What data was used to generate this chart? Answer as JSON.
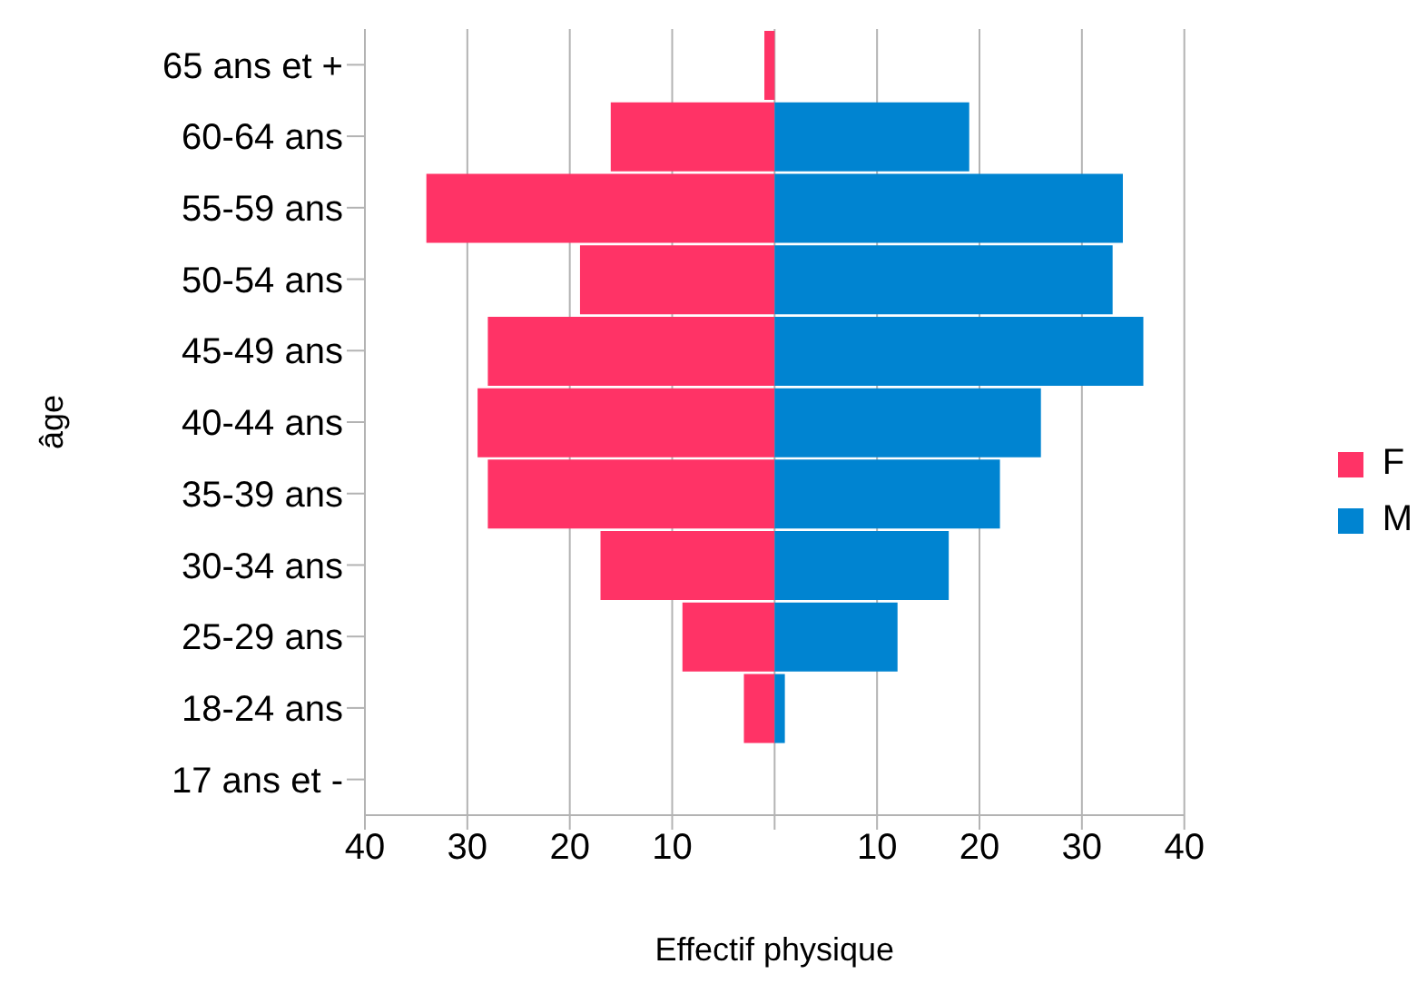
{
  "chart_data": {
    "type": "bar",
    "orientation": "horizontal",
    "stacked": true,
    "xlabel": "Effectif physique",
    "ylabel": "âge",
    "categories": [
      "65 ans et +",
      "60-64 ans",
      "55-59 ans",
      "50-54 ans",
      "45-49 ans",
      "40-44 ans",
      "35-39 ans",
      "30-34 ans",
      "25-29 ans",
      "18-24 ans",
      "17 ans et -"
    ],
    "series": [
      {
        "name": "F",
        "color": "#ff3366",
        "values": [
          -1,
          -16,
          -34,
          -19,
          -28,
          -29,
          -28,
          -17,
          -9,
          -3,
          0
        ]
      },
      {
        "name": "M",
        "color": "#0084d1",
        "values": [
          0,
          19,
          34,
          33,
          36,
          26,
          22,
          17,
          12,
          1,
          0
        ]
      }
    ],
    "xlim": [
      -40,
      40
    ],
    "xticks": [
      {
        "value": -40,
        "label": "40"
      },
      {
        "value": -30,
        "label": "30"
      },
      {
        "value": -20,
        "label": "20"
      },
      {
        "value": -10,
        "label": "10"
      },
      {
        "value": 0,
        "label": null
      },
      {
        "value": 10,
        "label": "10"
      },
      {
        "value": 20,
        "label": "20"
      },
      {
        "value": 30,
        "label": "30"
      },
      {
        "value": 40,
        "label": "40"
      }
    ],
    "grid": "x",
    "legend": "right"
  }
}
